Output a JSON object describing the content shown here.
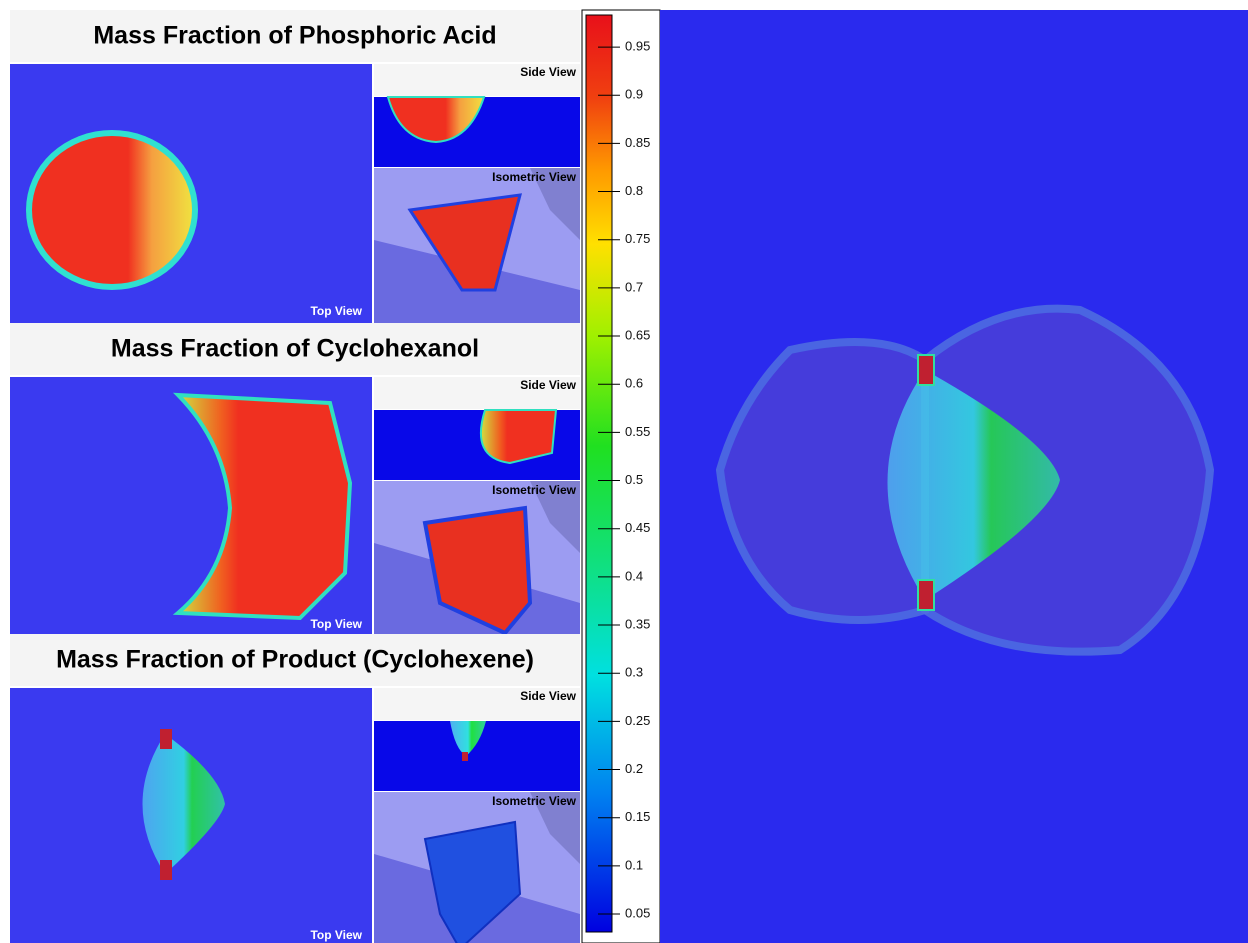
{
  "panels": [
    {
      "title": "Mass Fraction of Phosphoric Acid",
      "side": "Side View",
      "isometric": "Isometric View",
      "top": "Top View"
    },
    {
      "title": "Mass Fraction of Cyclohexanol",
      "side": "Side View",
      "isometric": "Isometric View",
      "top": "Top View"
    },
    {
      "title": "Mass Fraction of Product (Cyclohexene)",
      "side": "Side View",
      "isometric": "Isometric View",
      "top": "Top View"
    }
  ],
  "colorbar": {
    "ticks": [
      0.05,
      0.1,
      0.15,
      0.2,
      0.25,
      0.3,
      0.35,
      0.4,
      0.45,
      0.5,
      0.55,
      0.6,
      0.65,
      0.7,
      0.75,
      0.8,
      0.85,
      0.9,
      0.95
    ]
  }
}
